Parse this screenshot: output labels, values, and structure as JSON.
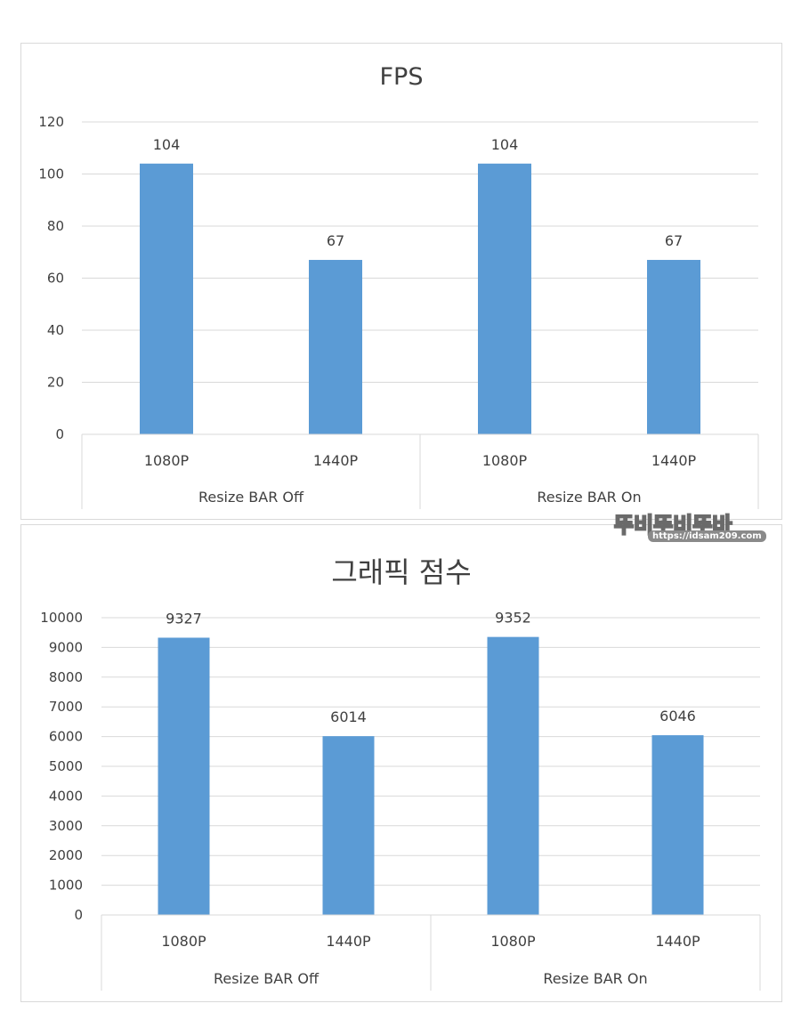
{
  "colors": {
    "bar": "#5b9bd5",
    "grid": "#d9d9d9",
    "text": "#404040"
  },
  "watermark": {
    "logo": "뚜비뚜비뚜바",
    "url": "https://idsam209.com"
  },
  "chart_data": [
    {
      "type": "bar",
      "title": "FPS",
      "groups": [
        {
          "label": "Resize BAR Off",
          "categories": [
            "1080P",
            "1440P"
          ],
          "values": [
            104,
            67
          ]
        },
        {
          "label": "Resize BAR On",
          "categories": [
            "1080P",
            "1440P"
          ],
          "values": [
            104,
            67
          ]
        }
      ],
      "ylim": [
        0,
        120
      ],
      "yticks": [
        "0",
        "20",
        "40",
        "60",
        "80",
        "100",
        "120"
      ],
      "data_labels": [
        "104",
        "67",
        "104",
        "67"
      ],
      "grid": true,
      "legend": "none"
    },
    {
      "type": "bar",
      "title": "그래픽 점수",
      "groups": [
        {
          "label": "Resize BAR Off",
          "categories": [
            "1080P",
            "1440P"
          ],
          "values": [
            9327,
            6014
          ]
        },
        {
          "label": "Resize BAR On",
          "categories": [
            "1080P",
            "1440P"
          ],
          "values": [
            9352,
            6046
          ]
        }
      ],
      "ylim": [
        0,
        10000
      ],
      "yticks": [
        "0",
        "1000",
        "2000",
        "3000",
        "4000",
        "5000",
        "6000",
        "7000",
        "8000",
        "9000",
        "10000"
      ],
      "data_labels": [
        "9327",
        "6014",
        "9352",
        "6046"
      ],
      "grid": true,
      "legend": "none"
    }
  ]
}
